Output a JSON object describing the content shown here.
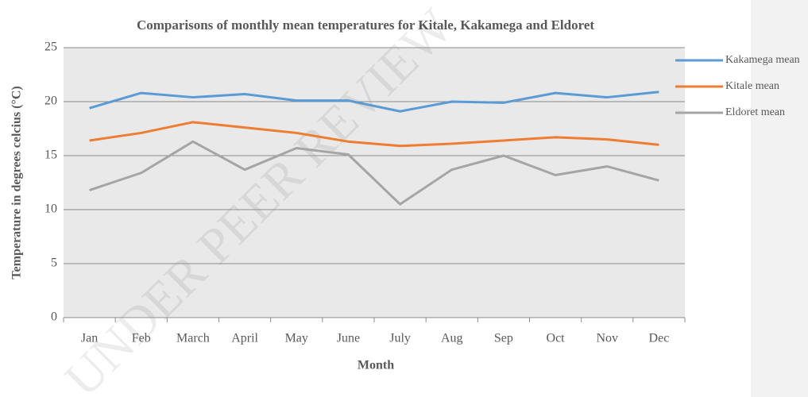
{
  "chart_data": {
    "type": "line",
    "title": "Comparisons of monthly mean temperatures for Kitale, Kakamega and Eldoret",
    "x_label": "Month",
    "y_label": "Temperature in degrees celcius (°C)",
    "watermark": "UNDER PEER REVIEW",
    "categories": [
      "Jan",
      "Feb",
      "March",
      "April",
      "May",
      "June",
      "July",
      "Aug",
      "Sep",
      "Oct",
      "Nov",
      "Dec"
    ],
    "series": [
      {
        "name": "Kakamega mean",
        "color": "#5b9bd5",
        "values": [
          19.4,
          20.8,
          20.4,
          20.7,
          20.1,
          20.1,
          19.1,
          20.0,
          19.9,
          20.8,
          20.4,
          20.9
        ]
      },
      {
        "name": "Kitale mean",
        "color": "#ed7d31",
        "values": [
          16.4,
          17.1,
          18.1,
          17.6,
          17.1,
          16.3,
          15.9,
          16.1,
          16.4,
          16.7,
          16.5,
          16.0
        ]
      },
      {
        "name": "Eldoret mean",
        "color": "#a5a5a5",
        "values": [
          11.8,
          13.4,
          16.3,
          13.7,
          15.7,
          15.1,
          10.5,
          13.7,
          15.0,
          13.2,
          14.0,
          12.7
        ]
      }
    ],
    "ylim": [
      0,
      25
    ],
    "yticks": [
      0,
      5,
      10,
      15,
      20,
      25
    ],
    "grid": true,
    "legend": "right"
  }
}
